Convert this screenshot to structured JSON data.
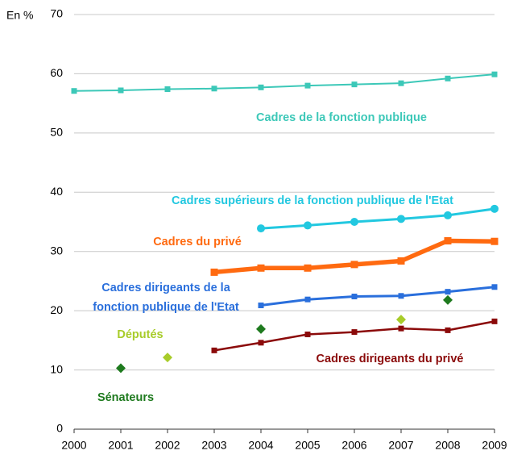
{
  "chart_data": {
    "type": "line",
    "y_label": "En %",
    "x": [
      2000,
      2001,
      2002,
      2003,
      2004,
      2005,
      2006,
      2007,
      2008,
      2009
    ],
    "xlim": [
      2000,
      2009
    ],
    "xticks": [
      2000,
      2001,
      2002,
      2003,
      2004,
      2005,
      2006,
      2007,
      2008,
      2009
    ],
    "ylim": [
      0,
      70
    ],
    "yticks": [
      0,
      10,
      20,
      30,
      40,
      50,
      60,
      70
    ],
    "grid": true,
    "series": [
      {
        "name": "Cadres de la fonction publique",
        "color": "#3cc8b8",
        "marker": "square",
        "line": true,
        "values": [
          57.1,
          57.2,
          57.4,
          57.5,
          57.7,
          58.0,
          58.2,
          58.4,
          59.2,
          59.9
        ]
      },
      {
        "name": "Cadres supérieurs de la fonction publique de l'Etat",
        "color": "#22c8e0",
        "marker": "circle",
        "line": true,
        "values": [
          null,
          null,
          null,
          null,
          33.9,
          34.4,
          35.0,
          35.5,
          36.1,
          37.2
        ]
      },
      {
        "name": "Cadres du privé",
        "color": "#ff6a10",
        "marker": "square",
        "line": true,
        "values": [
          null,
          null,
          null,
          26.5,
          27.2,
          27.2,
          27.8,
          28.4,
          31.8,
          31.7
        ]
      },
      {
        "name": "Cadres dirigeants de la fonction publique de l'Etat",
        "color": "#2a6fdc",
        "marker": "square",
        "line": true,
        "values": [
          null,
          null,
          null,
          null,
          20.9,
          21.9,
          22.4,
          22.5,
          23.2,
          24.0
        ]
      },
      {
        "name": "Députés",
        "color": "#a8cc2a",
        "marker": "diamond",
        "line": false,
        "values": [
          null,
          null,
          12.1,
          null,
          null,
          null,
          null,
          18.5,
          null,
          null
        ]
      },
      {
        "name": "Sénateurs",
        "color": "#1e7a1e",
        "marker": "diamond",
        "line": false,
        "values": [
          null,
          10.3,
          null,
          null,
          16.9,
          null,
          null,
          null,
          21.8,
          null
        ]
      },
      {
        "name": "Cadres dirigeants du privé",
        "color": "#8b0a0a",
        "marker": "square",
        "line": true,
        "values": [
          null,
          null,
          null,
          13.3,
          14.6,
          16.0,
          16.4,
          17.0,
          16.7,
          18.2
        ]
      }
    ]
  }
}
